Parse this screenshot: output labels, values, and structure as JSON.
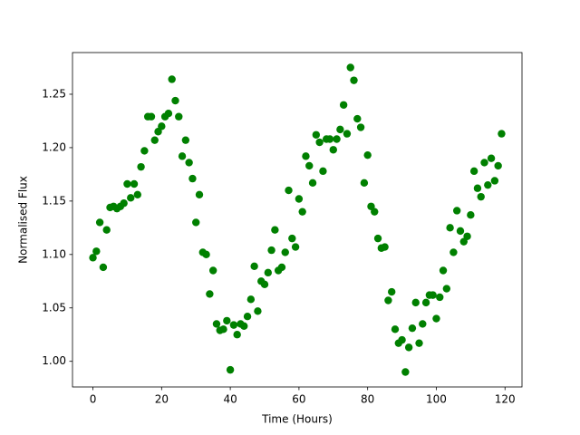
{
  "chart_data": {
    "type": "scatter",
    "xlabel": "Time (Hours)",
    "ylabel": "Normalised Flux",
    "color": "#008000",
    "xlim": [
      -5.95,
      124.95
    ],
    "ylim": [
      0.976,
      1.289
    ],
    "xticks": [
      0,
      20,
      40,
      60,
      80,
      100,
      120
    ],
    "yticks": [
      {
        "value": 1.0,
        "label": "1.00"
      },
      1.05,
      {
        "value": 1.1,
        "label": "1.10"
      },
      1.15,
      {
        "value": 1.2,
        "label": "1.20"
      },
      1.25
    ],
    "x": [
      0,
      1,
      2,
      3,
      4,
      5,
      6,
      7,
      8,
      9,
      10,
      11,
      12,
      13,
      14,
      15,
      16,
      17,
      18,
      19,
      20,
      21,
      22,
      23,
      24,
      25,
      26,
      27,
      28,
      29,
      30,
      31,
      32,
      33,
      34,
      35,
      36,
      37,
      38,
      39,
      40,
      41,
      42,
      43,
      44,
      45,
      46,
      47,
      48,
      49,
      50,
      51,
      52,
      53,
      54,
      55,
      56,
      57,
      58,
      59,
      60,
      61,
      62,
      63,
      64,
      65,
      66,
      67,
      68,
      69,
      70,
      71,
      72,
      73,
      74,
      75,
      76,
      77,
      78,
      79,
      80,
      81,
      82,
      83,
      84,
      85,
      86,
      87,
      88,
      89,
      90,
      91,
      92,
      93,
      94,
      95,
      96,
      97,
      98,
      99,
      100,
      101,
      102,
      103,
      104,
      105,
      106,
      107,
      108,
      109,
      110,
      111,
      112,
      113,
      114,
      115,
      116,
      117,
      118,
      119
    ],
    "values": [
      1.097,
      1.103,
      1.13,
      1.088,
      1.123,
      1.144,
      1.145,
      1.143,
      1.145,
      1.148,
      1.166,
      1.153,
      1.166,
      1.156,
      1.182,
      1.197,
      1.229,
      1.229,
      1.207,
      1.215,
      1.22,
      1.229,
      1.232,
      1.264,
      1.244,
      1.229,
      1.192,
      1.207,
      1.186,
      1.171,
      1.13,
      1.156,
      1.102,
      1.1,
      1.063,
      1.085,
      1.035,
      1.029,
      1.03,
      1.038,
      0.992,
      1.034,
      1.025,
      1.035,
      1.033,
      1.042,
      1.058,
      1.089,
      1.047,
      1.075,
      1.072,
      1.083,
      1.104,
      1.123,
      1.085,
      1.088,
      1.102,
      1.16,
      1.115,
      1.107,
      1.152,
      1.14,
      1.192,
      1.183,
      1.167,
      1.212,
      1.205,
      1.178,
      1.208,
      1.208,
      1.198,
      1.208,
      1.217,
      1.24,
      1.213,
      1.275,
      1.263,
      1.227,
      1.219,
      1.167,
      1.193,
      1.145,
      1.14,
      1.115,
      1.106,
      1.107,
      1.057,
      1.065,
      1.03,
      1.017,
      1.02,
      0.99,
      1.013,
      1.031,
      1.055,
      1.017,
      1.035,
      1.055,
      1.062,
      1.062,
      1.04,
      1.06,
      1.085,
      1.068,
      1.125,
      1.102,
      1.141,
      1.122,
      1.112,
      1.117,
      1.137,
      1.178,
      1.162,
      1.154,
      1.186,
      1.165,
      1.19,
      1.169,
      1.183,
      1.213
    ]
  }
}
